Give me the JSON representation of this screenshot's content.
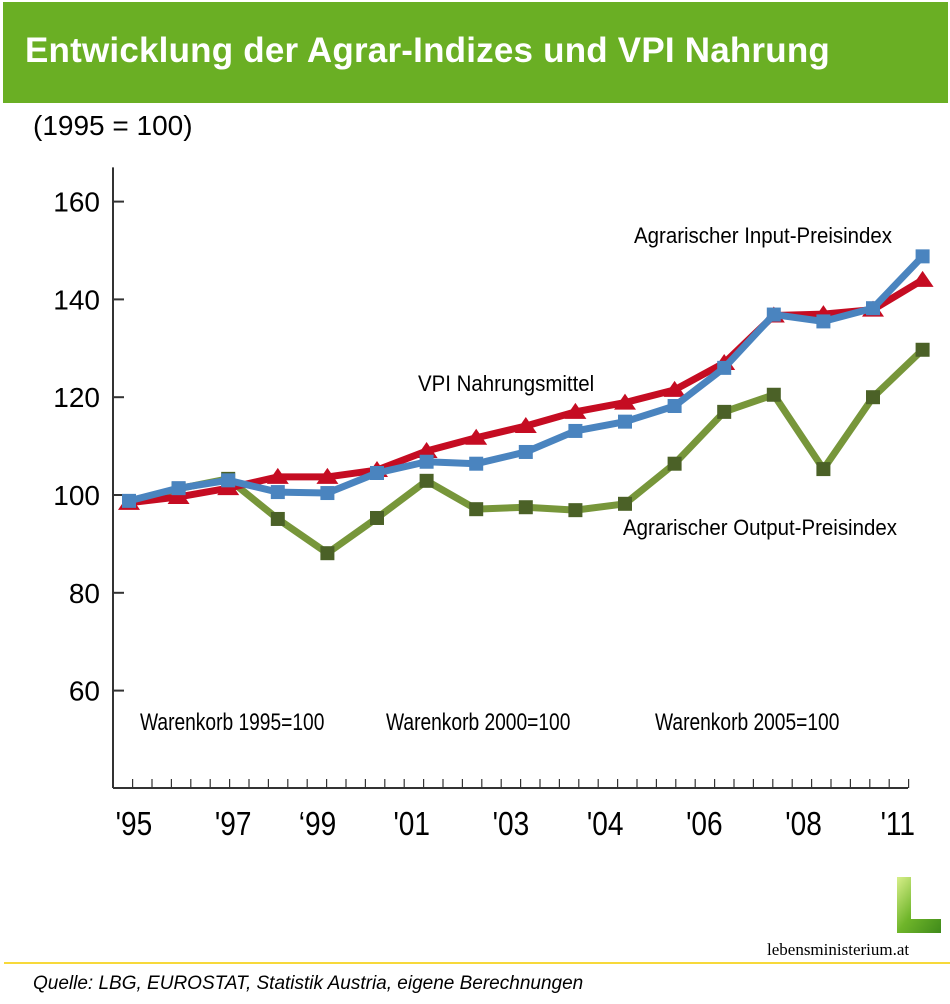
{
  "header": {
    "title": "Entwicklung der Agrar-Indizes und VPI Nahrung"
  },
  "subtitle": "(1995 = 100)",
  "chart_data": {
    "type": "line",
    "title": "Entwicklung der Agrar-Indizes und VPI Nahrung",
    "ylabel": "(1995 = 100)",
    "xlabel": "",
    "ylim": [
      40,
      167
    ],
    "xlim": [
      1994.7,
      2011.5
    ],
    "y_ticks": [
      60,
      80,
      100,
      120,
      140,
      160
    ],
    "y_tick_labels": [
      "60",
      "80",
      "100",
      "120",
      "140",
      "160"
    ],
    "x_tick_labels": [
      "'95",
      "'97",
      "‘99",
      "'01",
      "'03",
      "'04",
      "'06",
      "'08",
      "'11"
    ],
    "x_tick_label_positions": [
      1995.1,
      1997.1,
      1998.8,
      2000.7,
      2002.7,
      2004.6,
      2006.6,
      2008.6,
      2010.5
    ],
    "x": [
      1995,
      1996,
      1997,
      1998,
      1999,
      2000,
      2001,
      2002,
      2003,
      2004,
      2005,
      2006,
      2007,
      2008,
      2009,
      2010,
      2011
    ],
    "grid": false,
    "series": [
      {
        "name": "VPI Nahrungsmittel",
        "color": "#c50c22",
        "marker": "triangle",
        "values": [
          98.4,
          99.6,
          101.4,
          103.7,
          103.7,
          105.1,
          109.0,
          111.7,
          114.1,
          117.0,
          118.9,
          121.5,
          127.0,
          136.7,
          137.0,
          137.9,
          144.0
        ]
      },
      {
        "name": "Agrarischer Input-Preisindex",
        "color": "#4a84bf",
        "marker": "square",
        "values": [
          98.8,
          101.4,
          103.0,
          100.6,
          100.4,
          104.5,
          106.8,
          106.4,
          108.8,
          113.1,
          115.0,
          118.2,
          126.0,
          136.9,
          135.5,
          138.2,
          148.8
        ]
      },
      {
        "name": "Agrarischer Output-Preisindex",
        "color": "#77963a",
        "marker_color": "#4b6127",
        "marker": "square",
        "values": [
          98.6,
          101.3,
          103.3,
          95.1,
          88.1,
          95.3,
          102.9,
          97.1,
          97.5,
          96.9,
          98.2,
          106.4,
          117.0,
          120.5,
          105.3,
          120.0,
          129.7
        ]
      }
    ],
    "annotations": [
      {
        "text": "Agrarischer Input-Preisindex",
        "series": "Agrarischer Input-Preisindex"
      },
      {
        "text": "VPI Nahrungsmittel",
        "series": "VPI Nahrungsmittel"
      },
      {
        "text": "Agrarischer Output-Preisindex",
        "series": "Agrarischer Output-Preisindex"
      },
      {
        "text": "Warenkorb 1995=100"
      },
      {
        "text": "Warenkorb 2000=100"
      },
      {
        "text": "Warenkorb 2005=100"
      }
    ]
  },
  "footer": {
    "source": "Quelle: LBG, EUROSTAT, Statistik Austria, eigene Berechnungen",
    "logo_text": "lebensministerium.at",
    "logo_letter": "L"
  }
}
